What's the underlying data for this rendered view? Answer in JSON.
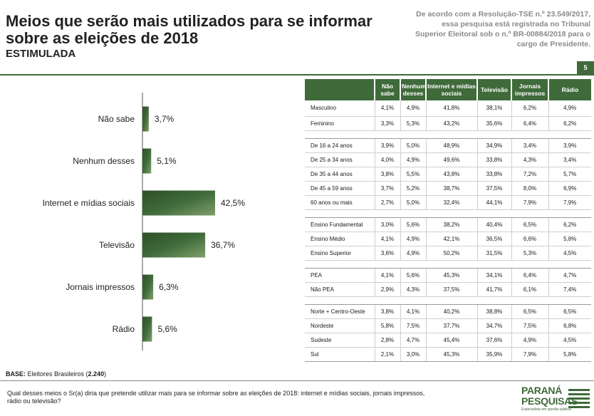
{
  "header": {
    "title": "Meios que serão mais utilizados para se informar sobre as eleições de 2018",
    "subtitle": "ESTIMULADA",
    "legal_note": "De acordo com a Resolução-TSE n.º 23.549/2017, essa pesquisa está registrada no Tribunal Superior Eleitoral sob o n.º BR-00884/2018 para o cargo de Presidente.",
    "page_number": "5"
  },
  "colors": {
    "accent": "#3f6a3a",
    "bar_light": "#6f8f5c",
    "bar_dark": "#2f4f28"
  },
  "chart_data": [
    {
      "type": "bar",
      "orientation": "horizontal",
      "categories": [
        "Não sabe",
        "Nenhum desses",
        "Internet e mídias sociais",
        "Televisão",
        "Jornais impressos",
        "Rádio"
      ],
      "values": [
        3.7,
        5.1,
        42.5,
        36.7,
        6.3,
        5.6
      ],
      "value_labels": [
        "3,7%",
        "5,1%",
        "42,5%",
        "36,7%",
        "6,3%",
        "5,6%"
      ],
      "unit": "%",
      "xlim": [
        0,
        100
      ],
      "grid": false
    },
    {
      "type": "table",
      "columns": [
        "Não sabe",
        "Nenhum desses",
        "Internet e mídias sociais",
        "Televisão",
        "Jornais impressos",
        "Rádio"
      ],
      "groups": [
        {
          "rows": [
            {
              "label": "Masculino",
              "values": [
                "4,1%",
                "4,9%",
                "41,8%",
                "38,1%",
                "6,2%",
                "4,9%"
              ]
            },
            {
              "label": "Feminino",
              "values": [
                "3,3%",
                "5,3%",
                "43,2%",
                "35,6%",
                "6,4%",
                "6,2%"
              ]
            }
          ]
        },
        {
          "rows": [
            {
              "label": "De 16 a 24 anos",
              "values": [
                "3,9%",
                "5,0%",
                "48,9%",
                "34,9%",
                "3,4%",
                "3,9%"
              ]
            },
            {
              "label": "De 25 a 34 anos",
              "values": [
                "4,0%",
                "4,9%",
                "49,6%",
                "33,8%",
                "4,3%",
                "3,4%"
              ]
            },
            {
              "label": "De 35 a 44 anos",
              "values": [
                "3,8%",
                "5,5%",
                "43,8%",
                "33,8%",
                "7,2%",
                "5,7%"
              ]
            },
            {
              "label": "De 45 a 59 anos",
              "values": [
                "3,7%",
                "5,2%",
                "38,7%",
                "37,5%",
                "8,0%",
                "6,9%"
              ]
            },
            {
              "label": "60 anos ou mais",
              "values": [
                "2,7%",
                "5,0%",
                "32,4%",
                "44,1%",
                "7,9%",
                "7,9%"
              ]
            }
          ]
        },
        {
          "rows": [
            {
              "label": "Ensino Fundamental",
              "values": [
                "3,0%",
                "5,6%",
                "38,2%",
                "40,4%",
                "6,5%",
                "6,2%"
              ]
            },
            {
              "label": "Ensino Médio",
              "values": [
                "4,1%",
                "4,9%",
                "42,1%",
                "36,5%",
                "6,6%",
                "5,8%"
              ]
            },
            {
              "label": "Ensino Superior",
              "values": [
                "3,6%",
                "4,9%",
                "50,2%",
                "31,5%",
                "5,3%",
                "4,5%"
              ]
            }
          ]
        },
        {
          "rows": [
            {
              "label": "PEA",
              "values": [
                "4,1%",
                "5,6%",
                "45,3%",
                "34,1%",
                "6,4%",
                "4,7%"
              ]
            },
            {
              "label": "Não PEA",
              "values": [
                "2,9%",
                "4,3%",
                "37,5%",
                "41,7%",
                "6,1%",
                "7,4%"
              ]
            }
          ]
        },
        {
          "rows": [
            {
              "label": "Norte + Centro-Oeste",
              "values": [
                "3,8%",
                "4,1%",
                "40,2%",
                "38,8%",
                "6,5%",
                "6,5%"
              ]
            },
            {
              "label": "Nordeste",
              "values": [
                "5,8%",
                "7,5%",
                "37,7%",
                "34,7%",
                "7,5%",
                "6,8%"
              ]
            },
            {
              "label": "Sudeste",
              "values": [
                "2,8%",
                "4,7%",
                "45,4%",
                "37,6%",
                "4,9%",
                "4,5%"
              ]
            },
            {
              "label": "Sul",
              "values": [
                "2,1%",
                "3,0%",
                "45,3%",
                "35,9%",
                "7,9%",
                "5,8%"
              ]
            }
          ]
        }
      ]
    }
  ],
  "footer": {
    "base_label": "BASE:",
    "base_text": " Eleitores Brasileiros (",
    "base_count": "2.240",
    "base_close": ")",
    "question": "Qual desses meios o Sr(a) diria que pretende utilizar mais para se informar sobre as eleições de 2018: internet e mídias sociais, jornais impressos, rádio ou televisão?",
    "logo_line1": "PARANÁ",
    "logo_line2": "PESQUISAS",
    "logo_tagline": "Especialista em opinião pública"
  }
}
